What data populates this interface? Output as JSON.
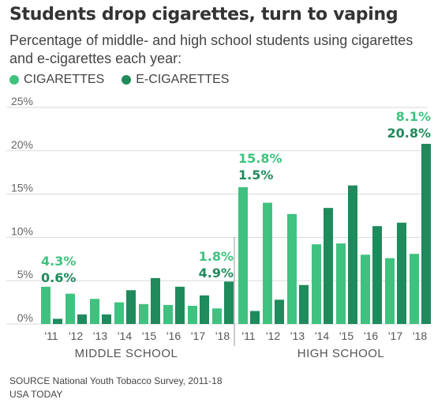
{
  "title": "Students drop cigarettes, turn to vaping",
  "subtitle": "Percentage of middle- and high school students using cigarettes and e-cigarettes each year:",
  "legend": [
    {
      "label": "CIGARETTES",
      "color": "#3fc27f"
    },
    {
      "label": "E-CIGARETTES",
      "color": "#1f8a5c"
    }
  ],
  "source": "SOURCE National Youth Tobacco Survey, 2011-18",
  "credit": "USA TODAY",
  "chart_data": {
    "type": "bar",
    "ylim": [
      0,
      25
    ],
    "yticks": [
      "0%",
      "5%",
      "10%",
      "15%",
      "20%",
      "25%"
    ],
    "grid": true,
    "colors": {
      "cigarettes": "#3fc27f",
      "ecigarettes": "#1f8a5c"
    },
    "groups": [
      {
        "name": "MIDDLE SCHOOL",
        "categories": [
          "'11",
          "'12",
          "'13",
          "'14",
          "'15",
          "'16",
          "'17",
          "'18"
        ],
        "series": [
          {
            "name": "CIGARETTES",
            "values": [
              4.3,
              3.5,
              2.9,
              2.5,
              2.3,
              2.2,
              2.1,
              1.8
            ]
          },
          {
            "name": "E-CIGARETTES",
            "values": [
              0.6,
              1.1,
              1.1,
              3.9,
              5.3,
              4.3,
              3.3,
              4.9
            ]
          }
        ],
        "annotations": [
          {
            "index": 0,
            "cig": "4.3%",
            "ecig": "0.6%"
          },
          {
            "index": 7,
            "cig": "1.8%",
            "ecig": "4.9%"
          }
        ]
      },
      {
        "name": "HIGH SCHOOL",
        "categories": [
          "'11",
          "'12",
          "'13",
          "'14",
          "'15",
          "'16",
          "'17",
          "'18"
        ],
        "series": [
          {
            "name": "CIGARETTES",
            "values": [
              15.8,
              14.0,
              12.7,
              9.2,
              9.3,
              8.0,
              7.6,
              8.1
            ]
          },
          {
            "name": "E-CIGARETTES",
            "values": [
              1.5,
              2.8,
              4.5,
              13.4,
              16.0,
              11.3,
              11.7,
              20.8
            ]
          }
        ],
        "annotations": [
          {
            "index": 0,
            "cig": "15.8%",
            "ecig": "1.5%"
          },
          {
            "index": 7,
            "cig": "8.1%",
            "ecig": "20.8%"
          }
        ]
      }
    ]
  }
}
